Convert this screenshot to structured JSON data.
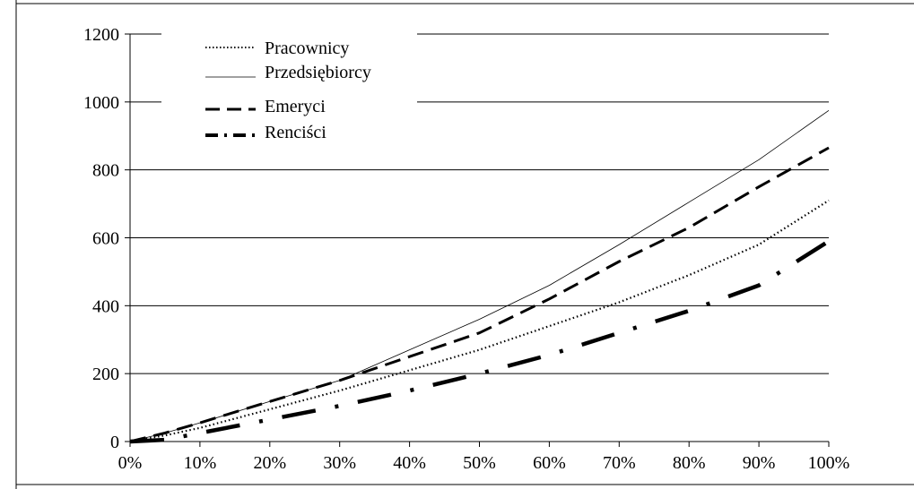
{
  "chart_data": {
    "type": "line",
    "title": "",
    "xlabel": "",
    "ylabel": "",
    "x_ticks": [
      "0%",
      "10%",
      "20%",
      "30%",
      "40%",
      "50%",
      "60%",
      "70%",
      "80%",
      "90%",
      "100%"
    ],
    "y_ticks": [
      "0",
      "200",
      "400",
      "600",
      "800",
      "1000",
      "1200"
    ],
    "xlim": [
      0,
      100
    ],
    "ylim": [
      0,
      1200
    ],
    "grid": "horizontal",
    "legend_position": "top-left",
    "x": [
      0,
      5,
      10,
      20,
      30,
      40,
      50,
      60,
      70,
      80,
      90,
      100
    ],
    "series": [
      {
        "name": "Pracownicy",
        "style": "dotted",
        "values": [
          0,
          18,
          40,
          95,
          150,
          210,
          270,
          340,
          410,
          490,
          580,
          710
        ]
      },
      {
        "name": "Przedsiębiorcy",
        "style": "solid-thin",
        "values": [
          0,
          25,
          55,
          118,
          180,
          270,
          360,
          460,
          580,
          705,
          830,
          975
        ]
      },
      {
        "name": "Emeryci",
        "style": "dashed",
        "values": [
          0,
          25,
          55,
          118,
          180,
          250,
          320,
          420,
          530,
          630,
          750,
          865
        ]
      },
      {
        "name": "Renciści",
        "style": "dash-dot",
        "values": [
          0,
          5,
          25,
          65,
          105,
          150,
          200,
          255,
          320,
          385,
          460,
          590
        ]
      }
    ]
  }
}
